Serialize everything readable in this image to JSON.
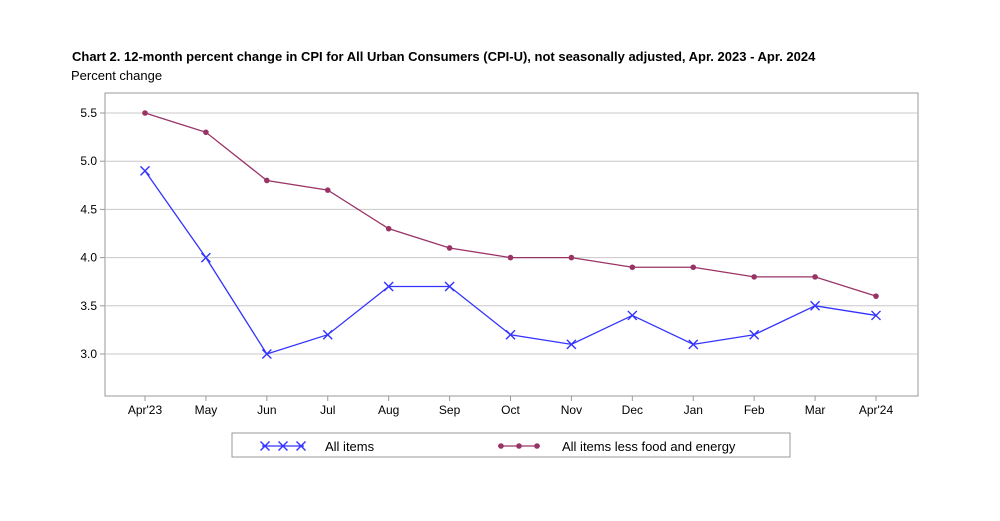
{
  "chart_data": {
    "type": "line",
    "title": "Chart 2. 12-month percent change in CPI for All Urban Consumers (CPI-U), not seasonally adjusted, Apr. 2023 - Apr. 2024",
    "ylabel": "Percent change",
    "xlabel": "",
    "categories": [
      "Apr'23",
      "May",
      "Jun",
      "Jul",
      "Aug",
      "Sep",
      "Oct",
      "Nov",
      "Dec",
      "Jan",
      "Feb",
      "Mar",
      "Apr'24"
    ],
    "ylim": [
      2.6,
      5.8
    ],
    "yticks": [
      3.0,
      3.5,
      4.0,
      4.5,
      5.0,
      5.5
    ],
    "ytick_labels": [
      "3.0",
      "3.5",
      "4.0",
      "4.5",
      "5.0",
      "5.5"
    ],
    "grid": true,
    "legend_position": "bottom",
    "series": [
      {
        "name": "All items",
        "color": "#3333ff",
        "marker": "x",
        "values": [
          4.9,
          4.0,
          3.0,
          3.2,
          3.7,
          3.7,
          3.2,
          3.1,
          3.4,
          3.1,
          3.2,
          3.5,
          3.4
        ]
      },
      {
        "name": "All items less food and energy",
        "color": "#993366",
        "marker": "circle",
        "values": [
          5.5,
          5.3,
          4.8,
          4.7,
          4.3,
          4.1,
          4.0,
          4.0,
          3.9,
          3.9,
          3.8,
          3.8,
          3.6
        ]
      }
    ]
  }
}
